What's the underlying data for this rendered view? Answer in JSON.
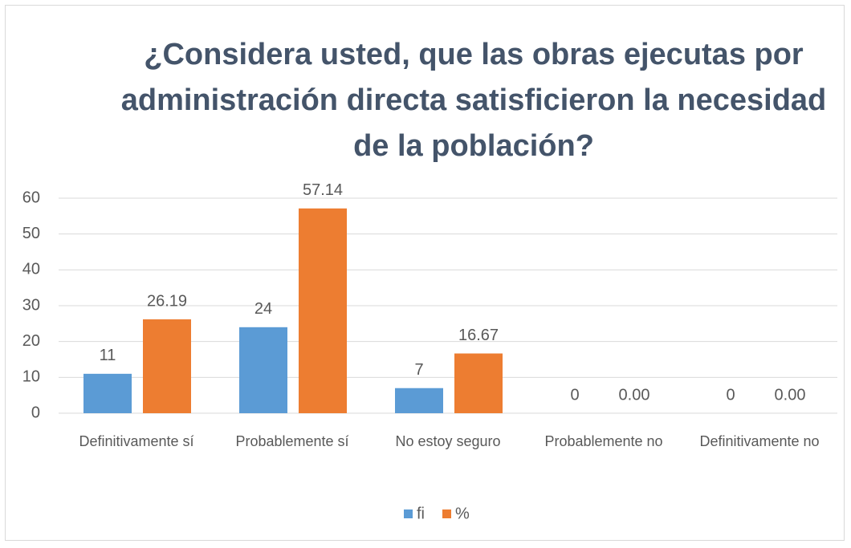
{
  "chart_data": {
    "type": "bar",
    "title": "¿Considera usted, que las obras ejecutas por administración directa satisficieron la necesidad de la población?",
    "categories": [
      "Definitivamente sí",
      "Probablemente sí",
      "No estoy seguro",
      "Probablemente no",
      "Definitivamente no"
    ],
    "series": [
      {
        "name": "fi",
        "color": "#5b9bd5",
        "values": [
          11,
          24,
          7,
          0,
          0
        ]
      },
      {
        "name": "%",
        "color": "#ed7d31",
        "values": [
          26.19,
          57.14,
          16.67,
          0,
          0
        ],
        "value_labels": [
          "26.19",
          "57.14",
          "16.67",
          "0.00",
          "0.00"
        ]
      }
    ],
    "ylim": [
      0,
      60
    ],
    "yticks": [
      0,
      10,
      20,
      30,
      40,
      50,
      60
    ],
    "grid": true,
    "legend": "bottom"
  }
}
